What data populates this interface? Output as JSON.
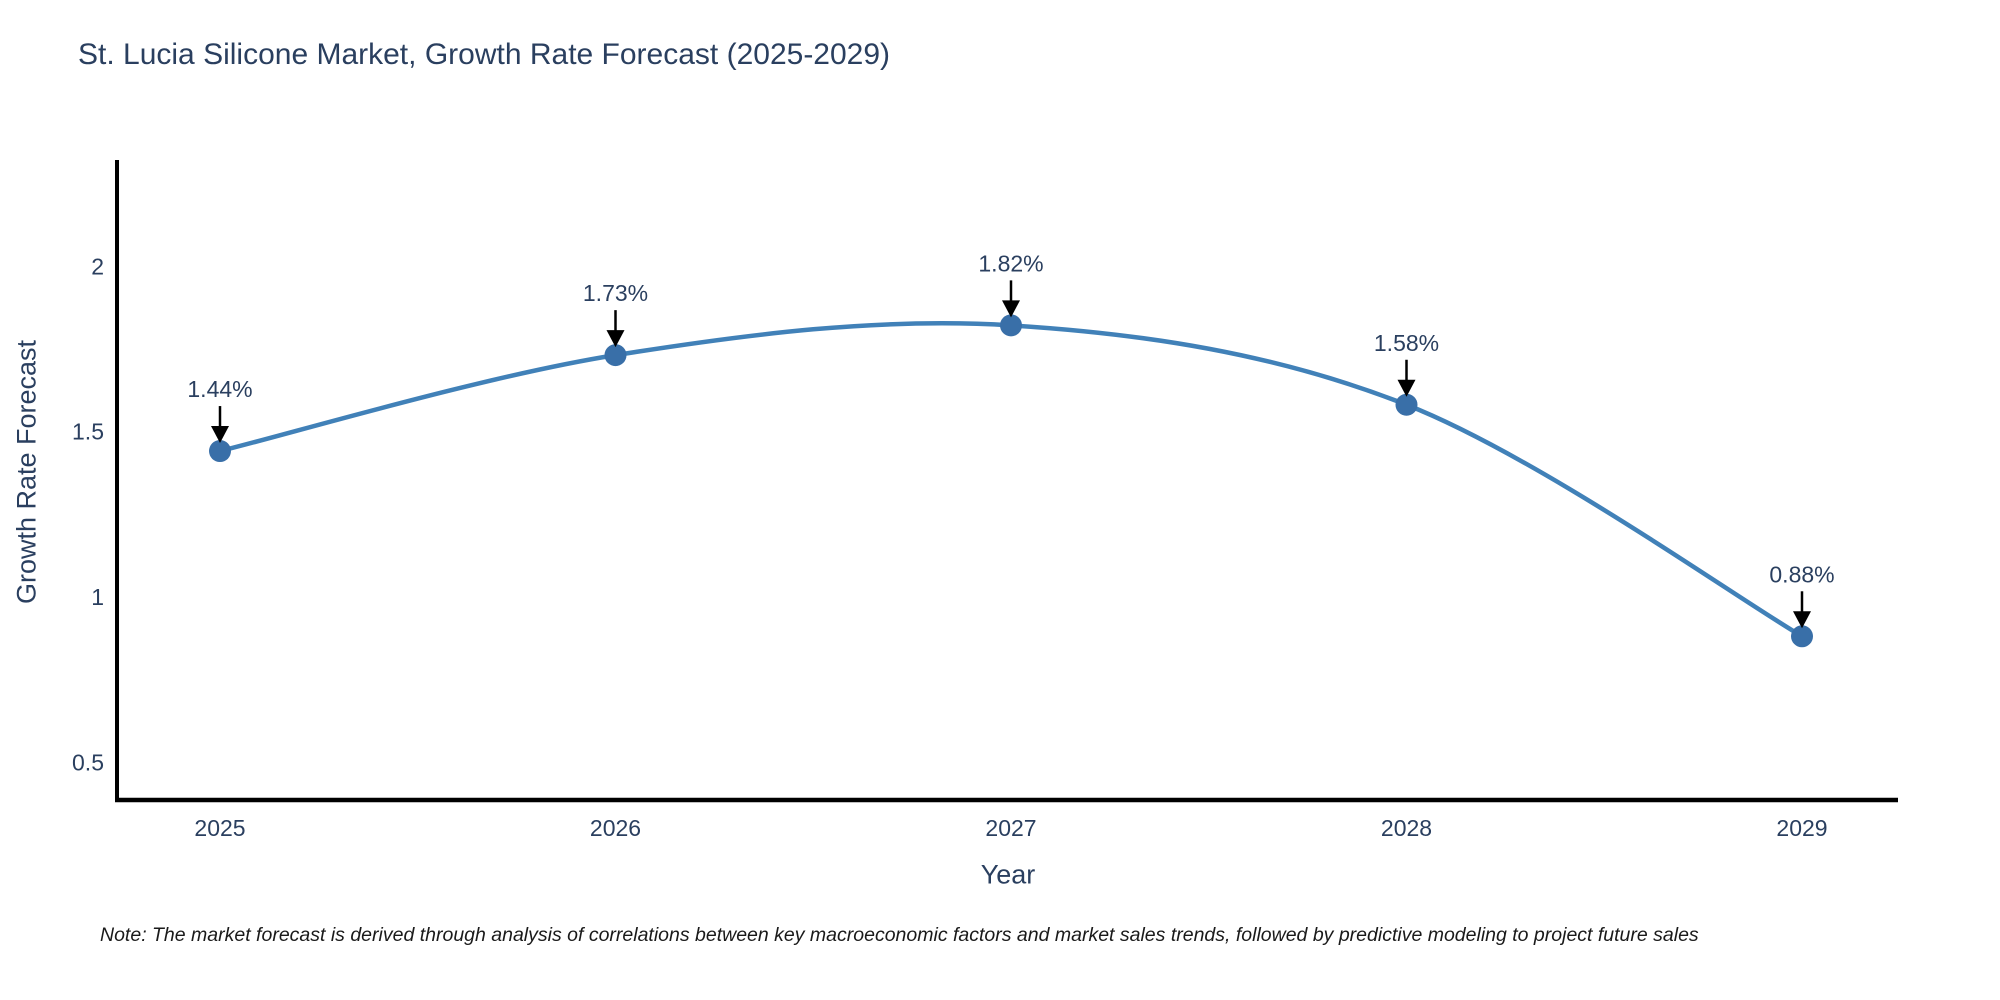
{
  "page": {
    "background": "#ffffff"
  },
  "chart_data": {
    "type": "line",
    "title": "St. Lucia Silicone Market, Growth Rate Forecast (2025-2029)",
    "xlabel": "Year",
    "ylabel": "Growth Rate Forecast",
    "categories": [
      "2025",
      "2026",
      "2027",
      "2028",
      "2029"
    ],
    "x": [
      2025,
      2026,
      2027,
      2028,
      2029
    ],
    "values": [
      1.44,
      1.73,
      1.82,
      1.58,
      0.88
    ],
    "point_labels": [
      "1.44%",
      "1.73%",
      "1.82%",
      "1.58%",
      "0.88%"
    ],
    "yticks": [
      0.5,
      1,
      1.5,
      2
    ],
    "ytick_labels": [
      "0.5",
      "1",
      "1.5",
      "2"
    ],
    "ylim": [
      0.385,
      2.32
    ],
    "line_shape": "spline",
    "markers": true,
    "grid": false,
    "legend_position": "none",
    "annotation_style": "arrow-down-to-point"
  },
  "note": {
    "text": "Note: The market forecast is derived through analysis of correlations between key macroeconomic factors and market sales trends, followed by predictive modeling to project future sales"
  },
  "colors": {
    "line": "#4181b8",
    "marker": "#396fa8",
    "axis_line": "#000000",
    "arrow": "#000000",
    "text": "#2a3f5f",
    "note_text": "#1a1a1a",
    "background": "#ffffff"
  }
}
